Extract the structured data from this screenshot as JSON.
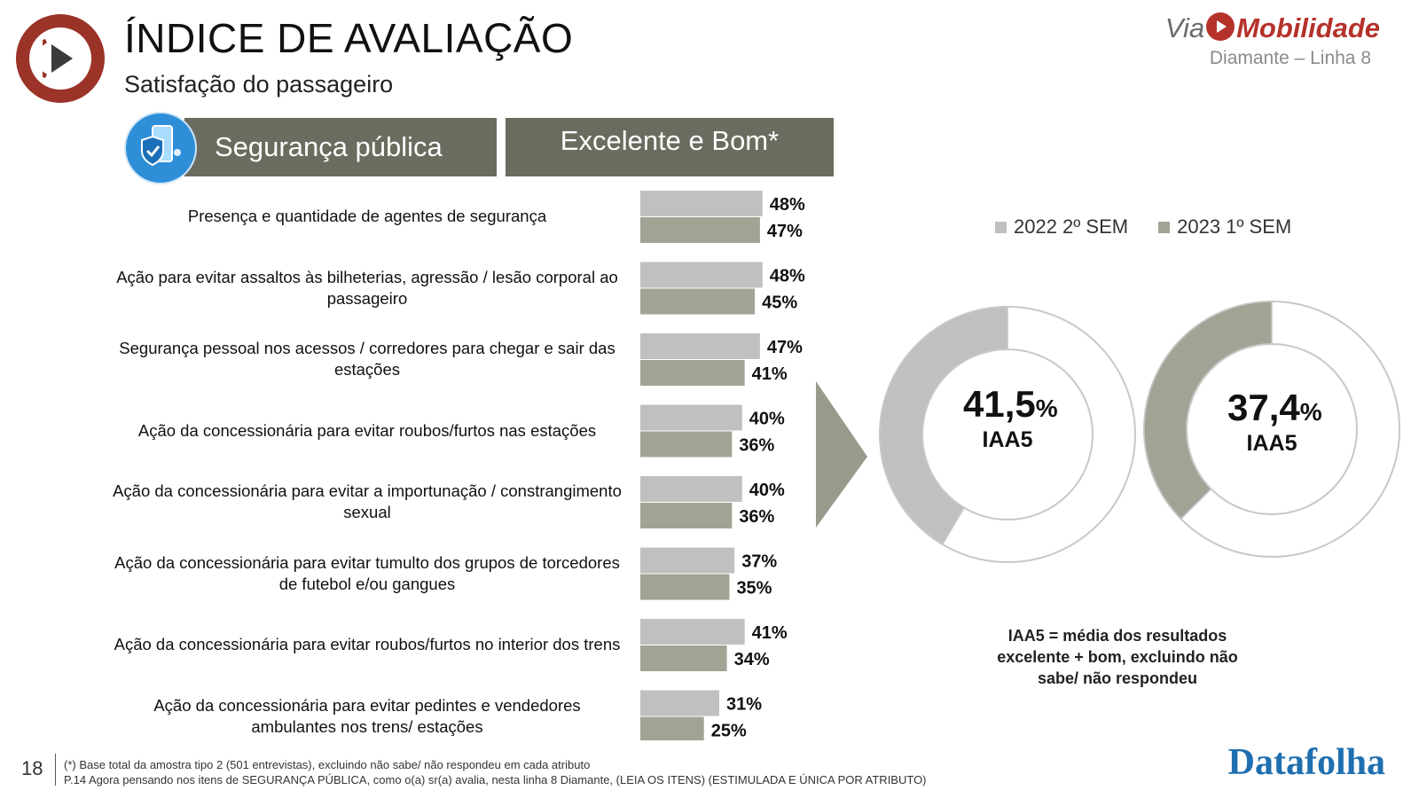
{
  "header": {
    "title": "ÍNDICE DE AVALIAÇÃO",
    "subtitle": "Satisfação do passageiro"
  },
  "brand": {
    "via": "Via",
    "name": "Mobilidade",
    "line": "Diamante – Linha 8"
  },
  "banners": {
    "category": "Segurança pública",
    "metric": "Excelente e Bom*"
  },
  "colors": {
    "series_2022": "#c0c0c0",
    "series_2023": "#a3a395",
    "banner": "#6b6b5f",
    "accent": "#9b3328",
    "datafolha": "#1f6fb0"
  },
  "chart_data": [
    {
      "type": "bar",
      "orientation": "horizontal",
      "title": "Excelente e Bom*",
      "categories": [
        "Presença e quantidade de agentes de segurança",
        "Ação para evitar assaltos às bilheterias, agressão / lesão corporal ao passageiro",
        "Segurança pessoal nos acessos / corredores para chegar e sair das estações",
        "Ação da concessionária para evitar roubos/furtos nas estações",
        "Ação da concessionária para evitar a importunação / constrangimento sexual",
        "Ação da concessionária para evitar tumulto dos grupos de torcedores de futebol e/ou gangues",
        "Ação da concessionária para evitar roubos/furtos no interior dos trens",
        "Ação da concessionária para evitar pedintes e vendedores ambulantes nos trens/ estações"
      ],
      "series": [
        {
          "name": "2022 2º SEM",
          "values": [
            48,
            48,
            47,
            40,
            40,
            37,
            41,
            31
          ],
          "labels": [
            "48%",
            "48%",
            "47%",
            "40%",
            "40%",
            "37%",
            "41%",
            "31%"
          ]
        },
        {
          "name": "2023 1º SEM",
          "values": [
            47,
            45,
            41,
            36,
            36,
            35,
            34,
            25
          ],
          "labels": [
            "47%",
            "45%",
            "41%",
            "36%",
            "36%",
            "35%",
            "34%",
            "25%"
          ]
        }
      ],
      "value_unit": "%"
    },
    {
      "type": "pie",
      "subtype": "donut",
      "series_name": "2022 2º SEM",
      "value": 41.5,
      "value_text": "41,5",
      "unit": "%",
      "metric": "IAA5"
    },
    {
      "type": "pie",
      "subtype": "donut",
      "series_name": "2023 1º SEM",
      "value": 37.4,
      "value_text": "37,4",
      "unit": "%",
      "metric": "IAA5"
    }
  ],
  "legend": {
    "items": [
      "2022 2º SEM",
      "2023 1º SEM"
    ],
    "placement": "top-right"
  },
  "iaa_note": "IAA5 = média dos resultados excelente + bom, excluindo não sabe/ não respondeu",
  "footer": {
    "page_number": "18",
    "note1": "(*) Base total da amostra tipo 2 (501 entrevistas), excluindo não sabe/ não respondeu em cada atributo",
    "note2": "P.14 Agora pensando nos itens de SEGURANÇA PÚBLICA, como o(a) sr(a) avalia, nesta linha 8 Diamante, (LEIA OS ITENS) (ESTIMULADA E ÚNICA POR ATRIBUTO)",
    "source": "Datafolha"
  }
}
